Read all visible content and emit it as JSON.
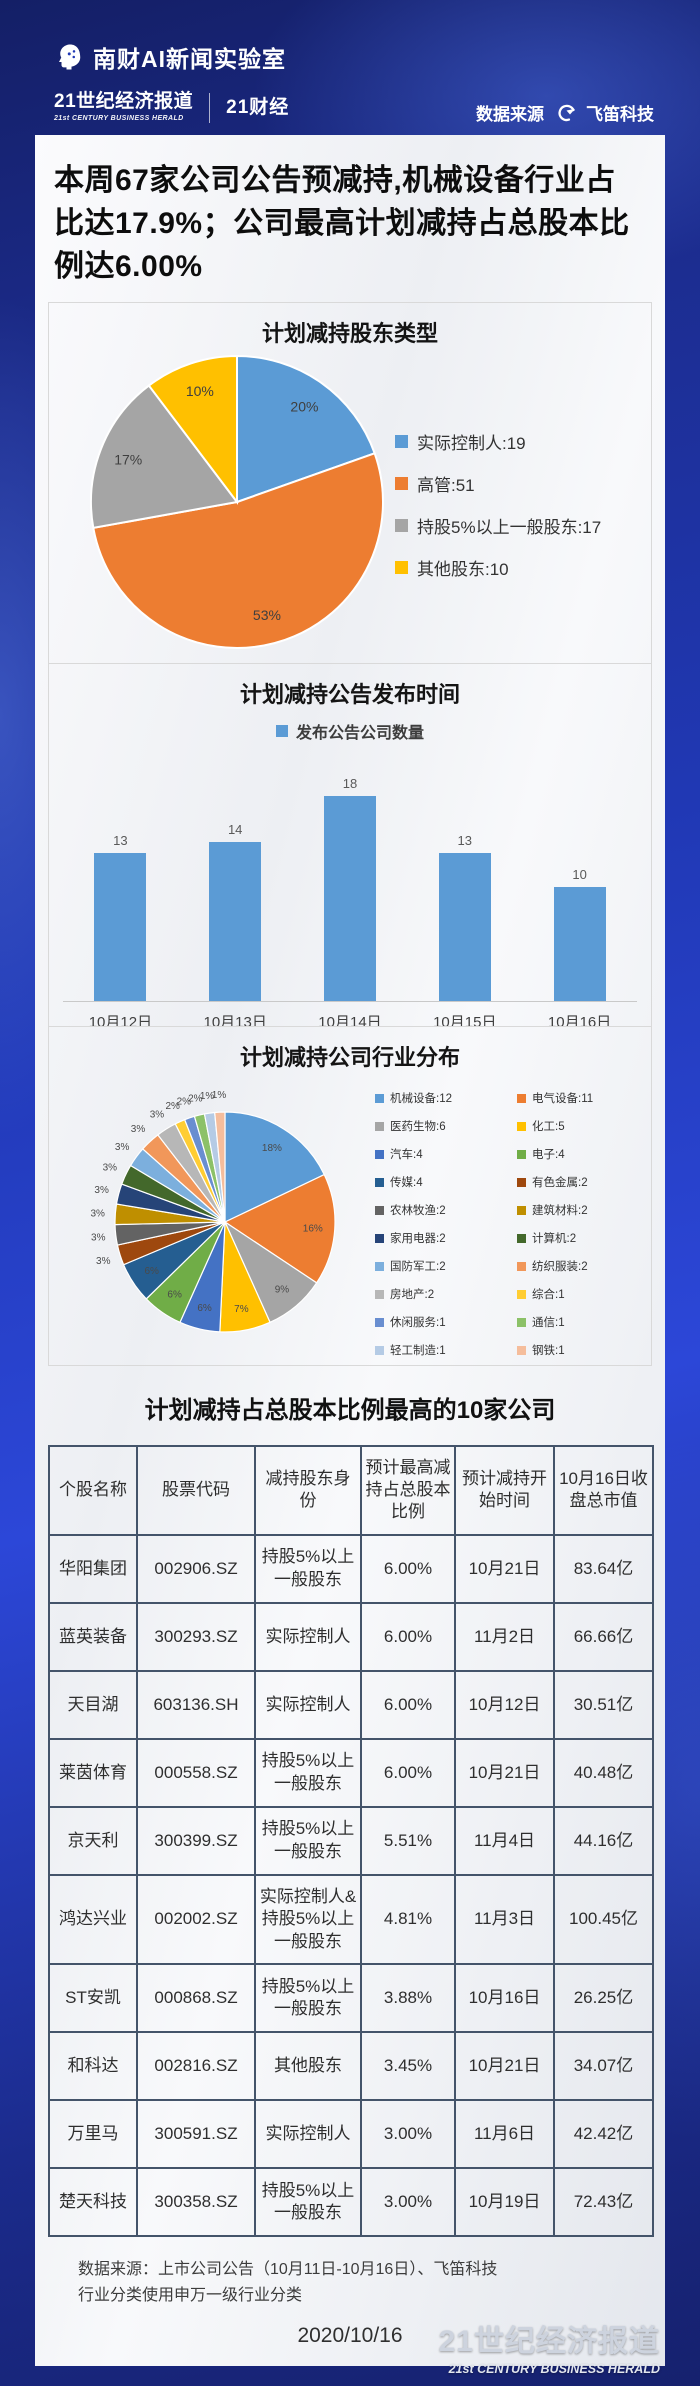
{
  "header": {
    "lab_name": "南财AI新闻实验室",
    "brand_primary": "21世纪经济报道",
    "brand_primary_sub": "21st CENTURY BUSINESS HERALD",
    "brand_secondary": "21财经",
    "data_source_label": "数据来源",
    "data_source_name": "飞笛科技",
    "icons": {
      "lab_logo": "head-icon",
      "data_source_logo": "bird-icon"
    }
  },
  "headline": "本周67家公司公告预减持,机械设备行业占比达17.9%；公司最高计划减持占总股本比例达6.00%",
  "chart_data": [
    {
      "type": "pie",
      "title": "计划减持股东类型",
      "labels": [
        "实际控制人",
        "高管",
        "持股5%以上一般股东",
        "其他股东"
      ],
      "values": [
        19,
        51,
        17,
        10
      ],
      "percent_labels": [
        "20%",
        "53%",
        "17%",
        "10%"
      ],
      "colors": [
        "#5B9BD5",
        "#ED7D31",
        "#A5A5A5",
        "#FFC000"
      ],
      "legend": [
        "实际控制人:19",
        "高管:51",
        "持股5%以上一般股东:17",
        "其他股东:10"
      ],
      "legend_position": "right"
    },
    {
      "type": "bar",
      "title": "计划减持公告发布时间",
      "series_name": "发布公告公司数量",
      "categories": [
        "10月12日",
        "10月13日",
        "10月14日",
        "10月15日",
        "10月16日"
      ],
      "values": [
        13,
        14,
        18,
        13,
        10
      ],
      "color": "#5B9BD5",
      "ylim": [
        0,
        18
      ],
      "data_labels": true,
      "grid": false,
      "legend_position": "top"
    },
    {
      "type": "pie",
      "title": "计划减持公司行业分布",
      "labels": [
        "机械设备",
        "电气设备",
        "医药生物",
        "化工",
        "汽车",
        "电子",
        "传媒",
        "有色金属",
        "农林牧渔",
        "建筑材料",
        "家用电器",
        "计算机",
        "国防军工",
        "纺织服装",
        "房地产",
        "综合",
        "休闲服务",
        "通信",
        "轻工制造",
        "钢铁"
      ],
      "values": [
        12,
        11,
        6,
        5,
        4,
        4,
        4,
        2,
        2,
        2,
        2,
        2,
        2,
        2,
        2,
        1,
        1,
        1,
        1,
        1
      ],
      "percent_labels": [
        "18%",
        "16%",
        "9%",
        "7%",
        "6%",
        "6%",
        "6%",
        "3%",
        "3%",
        "3%",
        "3%",
        "3%",
        "3%",
        "3%",
        "3%",
        "2%",
        "2%",
        "2%",
        "1%",
        "1%"
      ],
      "colors": [
        "#5B9BD5",
        "#ED7D31",
        "#A5A5A5",
        "#FFC000",
        "#4472C4",
        "#70AD47",
        "#255E91",
        "#9E480E",
        "#636363",
        "#BF8F00",
        "#264478",
        "#43682B",
        "#7CAFDD",
        "#F1975A",
        "#B7B7B7",
        "#FFCD33",
        "#698ED0",
        "#8CC168",
        "#B5CBE5",
        "#F5BD9C"
      ],
      "legend": [
        "机械设备:12",
        "电气设备:11",
        "医药生物:6",
        "化工:5",
        "汽车:4",
        "电子:4",
        "传媒:4",
        "有色金属:2",
        "农林牧渔:2",
        "建筑材料:2",
        "家用电器:2",
        "计算机:2",
        "国防军工:2",
        "纺织服装:2",
        "房地产:2",
        "综合:1",
        "休闲服务:1",
        "通信:1",
        "轻工制造:1",
        "钢铁:1"
      ],
      "legend_position": "right",
      "legend_columns": 2
    }
  ],
  "table": {
    "title": "计划减持占总股本比例最高的10家公司",
    "columns": [
      "个股名称",
      "股票代码",
      "减持股东身份",
      "预计最高减持占总股本比例",
      "预计减持开始时间",
      "10月16日收盘总市值"
    ],
    "rows": [
      [
        "华阳集团",
        "002906.SZ",
        "持股5%以上一般股东",
        "6.00%",
        "10月21日",
        "83.64亿"
      ],
      [
        "蓝英装备",
        "300293.SZ",
        "实际控制人",
        "6.00%",
        "11月2日",
        "66.66亿"
      ],
      [
        "天目湖",
        "603136.SH",
        "实际控制人",
        "6.00%",
        "10月12日",
        "30.51亿"
      ],
      [
        "莱茵体育",
        "000558.SZ",
        "持股5%以上一般股东",
        "6.00%",
        "10月21日",
        "40.48亿"
      ],
      [
        "京天利",
        "300399.SZ",
        "持股5%以上一般股东",
        "5.51%",
        "11月4日",
        "44.16亿"
      ],
      [
        "鸿达兴业",
        "002002.SZ",
        "实际控制人&持股5%以上一般股东",
        "4.81%",
        "11月3日",
        "100.45亿"
      ],
      [
        "ST安凯",
        "000868.SZ",
        "持股5%以上一般股东",
        "3.88%",
        "10月16日",
        "26.25亿"
      ],
      [
        "和科达",
        "002816.SZ",
        "其他股东",
        "3.45%",
        "10月21日",
        "34.07亿"
      ],
      [
        "万里马",
        "300591.SZ",
        "实际控制人",
        "3.00%",
        "11月6日",
        "42.42亿"
      ],
      [
        "楚天科技",
        "300358.SZ",
        "持股5%以上一般股东",
        "3.00%",
        "10月19日",
        "72.43亿"
      ]
    ]
  },
  "footer": {
    "source_line1": "数据来源：上市公司公告（10月11日-10月16日）、飞笛科技",
    "source_line2": "行业分类使用申万一级行业分类",
    "date": "2020/10/16",
    "watermark": "21世纪经济报道",
    "watermark_sub": "21st CENTURY BUSINESS HERALD"
  },
  "colors": {
    "accent_blue": "#5B9BD5",
    "table_border": "#44546A",
    "page_background": "#2038b4",
    "card_background": "#f0f2f5"
  }
}
